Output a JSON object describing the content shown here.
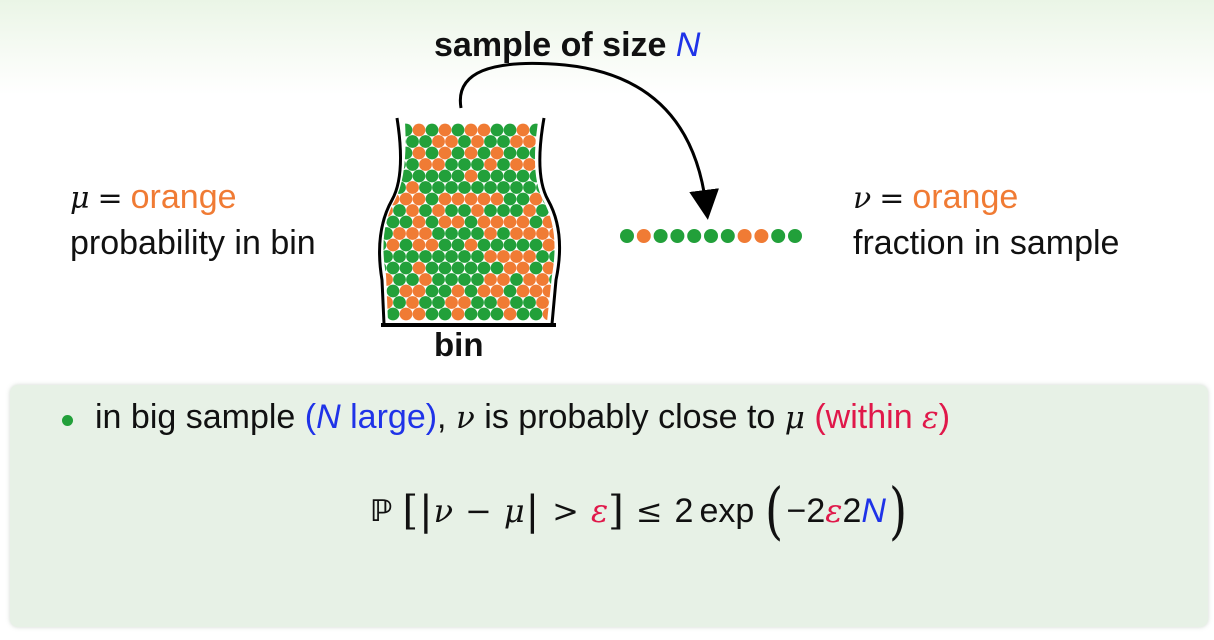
{
  "title": {
    "prefix": "sample of size ",
    "var": "N"
  },
  "left": {
    "symbol": "μ",
    "equals": "=",
    "value": "orange",
    "description": "probability in bin"
  },
  "right": {
    "symbol": "ν",
    "equals": "=",
    "value": "orange",
    "description": "fraction in sample"
  },
  "bin_label": "bin",
  "sample_marbles": [
    "green",
    "orange",
    "green",
    "green",
    "green",
    "green",
    "green",
    "orange",
    "orange",
    "green",
    "green"
  ],
  "bullet": {
    "part1": "in big sample ",
    "paren_open": "(",
    "n": "N",
    "large": " large)",
    "comma": ", ",
    "nu": "ν",
    "mid": " is probably close to ",
    "mu": "μ",
    "within": " (within ",
    "eps": "ε",
    "close": ")"
  },
  "formula": {
    "P": "ℙ",
    "lbrack": "[",
    "bar": "|",
    "nu": "ν",
    "minus": "−",
    "mu": "μ",
    "gt": ">",
    "eps": "ε",
    "rbrack": "]",
    "le": "≤",
    "two": "2",
    "exp": "exp",
    "lparen": "(",
    "neg2": "−2",
    "eps2": "ε",
    "sq": "2",
    "N": "N",
    "rparen": ")"
  },
  "colors": {
    "orange": "#f07b34",
    "green": "#22a03a",
    "blue": "#1f33e8",
    "red": "#e0184a",
    "box": "#e7f1e6"
  }
}
